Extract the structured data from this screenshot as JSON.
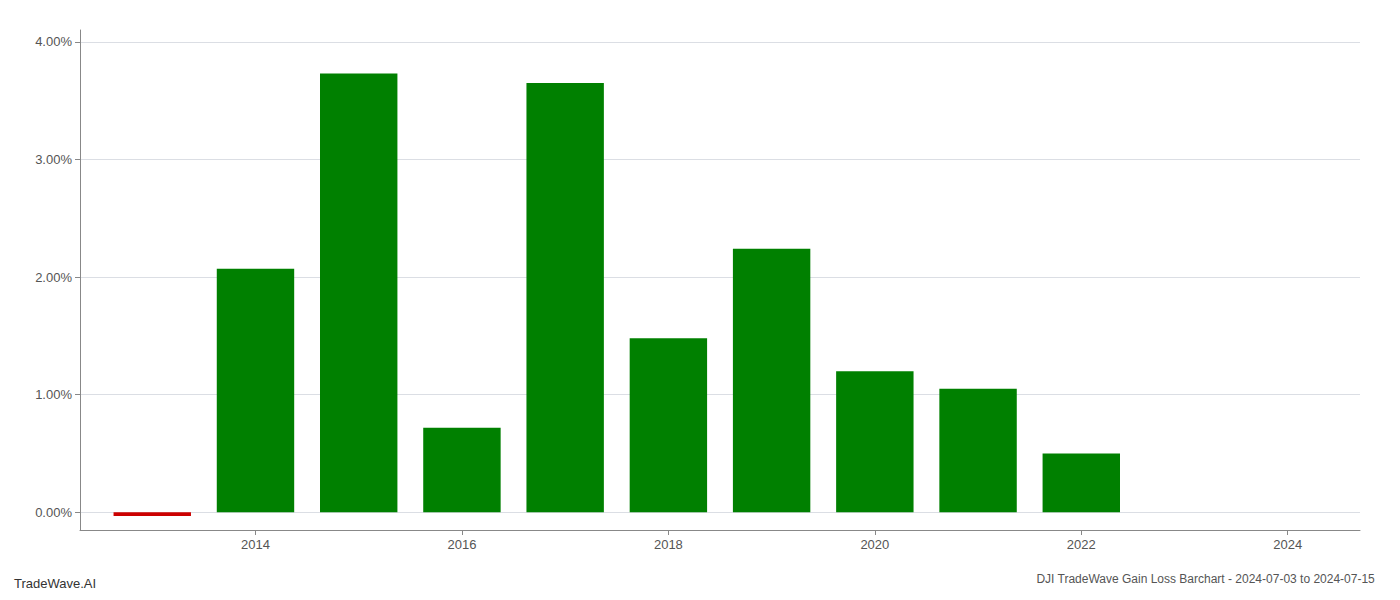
{
  "chart_data": {
    "type": "bar",
    "title": "DJI TradeWave Gain Loss Barchart - 2024-07-03 to 2024-07-15",
    "annotations": [
      "TradeWave.AI"
    ],
    "x": [
      2013,
      2014,
      2015,
      2016,
      2017,
      2018,
      2019,
      2020,
      2021,
      2022,
      2023
    ],
    "values": [
      -0.03,
      2.07,
      3.73,
      0.72,
      3.65,
      1.48,
      2.24,
      1.2,
      1.05,
      0.5,
      0.0
    ],
    "colors": [
      "#cc0000",
      "#008000",
      "#008000",
      "#008000",
      "#008000",
      "#008000",
      "#008000",
      "#008000",
      "#008000",
      "#008000",
      "#008000"
    ],
    "xlim": [
      2012.3,
      2024.7
    ],
    "xticks": [
      2014,
      2016,
      2018,
      2020,
      2022,
      2024
    ],
    "ylim": [
      -0.15,
      4.1
    ],
    "yticks": [
      {
        "value": 0,
        "label": "0.00%"
      },
      {
        "value": 1,
        "label": "1.00%"
      },
      {
        "value": 2,
        "label": "2.00%"
      },
      {
        "value": 3,
        "label": "3.00%"
      },
      {
        "value": 4,
        "label": "4.00%"
      }
    ],
    "grid": true
  }
}
